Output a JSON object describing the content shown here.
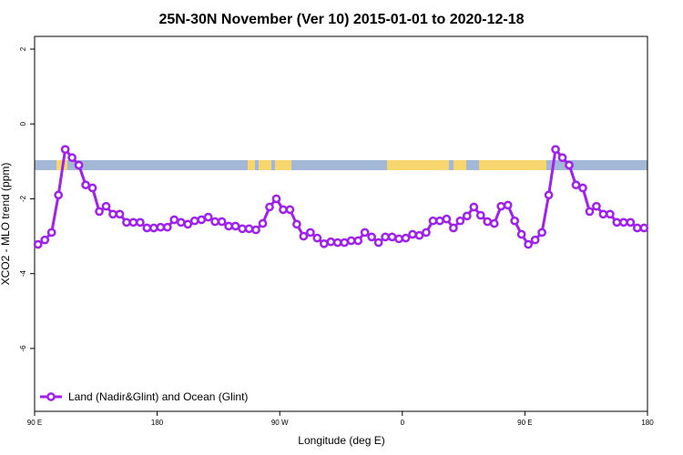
{
  "chart_data": {
    "type": "line",
    "title": "25N-30N November (Ver 10)   2015-01-01 to 2020-12-18",
    "x_label": "Longitude (deg E)",
    "y_label": "XCO2 - MLO trend (ppm)",
    "x": [
      92.5,
      97.5,
      102.5,
      107.5,
      112.5,
      117.5,
      122.5,
      127.5,
      132.5,
      137.5,
      142.5,
      147.5,
      152.5,
      157.5,
      162.5,
      167.5,
      172.5,
      177.5,
      182.5,
      187.5,
      192.5,
      197.5,
      202.5,
      207.5,
      212.5,
      217.5,
      222.5,
      227.5,
      232.5,
      237.5,
      242.5,
      247.5,
      252.5,
      257.5,
      262.5,
      267.5,
      272.5,
      277.5,
      282.5,
      287.5,
      292.5,
      297.5,
      302.5,
      307.5,
      312.5,
      317.5,
      322.5,
      327.5,
      332.5,
      337.5,
      342.5,
      347.5,
      352.5,
      357.5,
      362.5,
      367.5,
      372.5,
      377.5,
      382.5,
      387.5,
      392.5,
      397.5,
      402.5,
      407.5,
      412.5,
      417.5,
      422.5,
      427.5,
      432.5,
      437.5,
      442.5,
      447.5,
      452.5,
      457.5,
      462.5,
      467.5,
      472.5,
      477.5,
      482.5,
      487.5,
      492.5,
      497.5,
      502.5,
      507.5,
      512.5,
      517.5,
      522.5,
      527.5,
      532.5,
      537.5
    ],
    "series": [
      {
        "name": "Land (Nadir&Glint) and Ocean (Glint)",
        "color": "#a020f0",
        "values": [
          -3.22,
          -3.1,
          -2.9,
          -1.9,
          -0.68,
          -0.9,
          -1.1,
          -1.63,
          -1.71,
          -2.34,
          -2.2,
          -2.41,
          -2.41,
          -2.63,
          -2.63,
          -2.63,
          -2.78,
          -2.78,
          -2.76,
          -2.76,
          -2.56,
          -2.63,
          -2.68,
          -2.59,
          -2.56,
          -2.49,
          -2.61,
          -2.61,
          -2.73,
          -2.73,
          -2.8,
          -2.8,
          -2.83,
          -2.66,
          -2.22,
          -2.0,
          -2.29,
          -2.29,
          -2.68,
          -3.0,
          -2.9,
          -3.05,
          -3.2,
          -3.15,
          -3.17,
          -3.17,
          -3.12,
          -3.12,
          -2.9,
          -3.02,
          -3.17,
          -3.02,
          -3.02,
          -3.07,
          -3.05,
          -2.95,
          -2.98,
          -2.9,
          -2.59,
          -2.59,
          -2.54,
          -2.78,
          -2.59,
          -2.46,
          -2.22,
          -2.44,
          -2.61,
          -2.66,
          -2.2,
          -2.17,
          -2.59,
          -2.95,
          -3.22,
          -3.1,
          -2.9,
          -1.9,
          -0.68,
          -0.9,
          -1.1,
          -1.63,
          -1.71,
          -2.34,
          -2.2,
          -2.41,
          -2.41,
          -2.63,
          -2.63,
          -2.63,
          -2.78,
          -2.78
        ]
      }
    ],
    "xlim": [
      90,
      540
    ],
    "xticks": [
      {
        "value": 90,
        "label": "90 E"
      },
      180,
      {
        "value": 270,
        "label": "90 W"
      },
      {
        "value": 360,
        "label": "0"
      },
      {
        "value": 450,
        "label": "90 E"
      },
      {
        "value": 540,
        "label": "180"
      }
    ],
    "ylim": [
      -7.68,
      2.34
    ],
    "yticks": [
      2,
      0,
      -2,
      -4,
      -6
    ],
    "legend": "bottomleft"
  }
}
